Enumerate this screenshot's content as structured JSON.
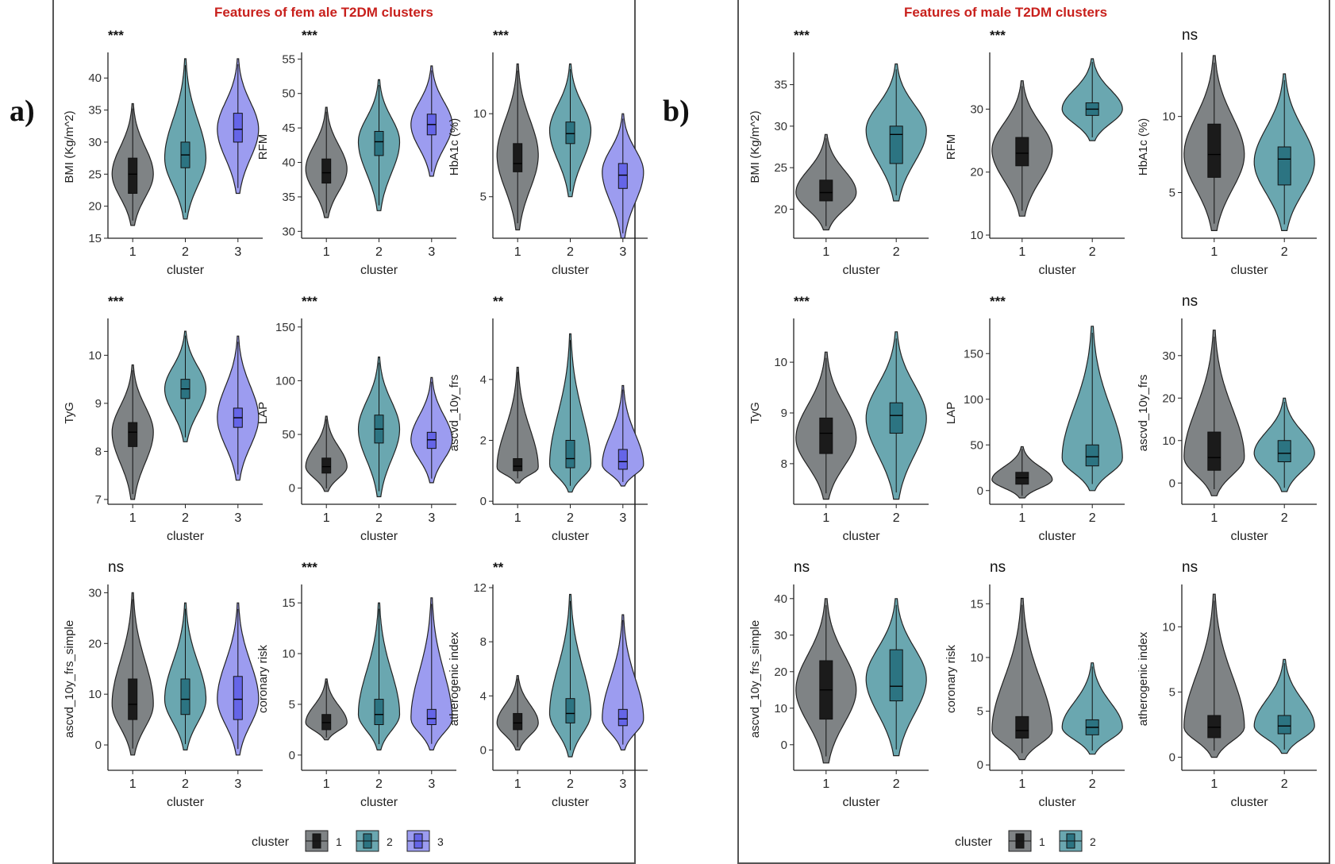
{
  "figure": {
    "left_label": "a)",
    "right_label": "b)",
    "left_title": "Features of fem ale T2DM  clusters",
    "right_title": "Features of male T2DM  clusters"
  },
  "colors": {
    "c1": "#7f8385",
    "c2": "#6aa7b0",
    "c3": "#9c9cf0",
    "box1": "#1b1b1b",
    "box2": "#2c7482",
    "box3": "#6565e8",
    "title": "#c8201c"
  },
  "legends": {
    "female": {
      "title": "cluster",
      "items": [
        "1",
        "2",
        "3"
      ]
    },
    "male": {
      "title": "cluster",
      "items": [
        "1",
        "2"
      ]
    }
  },
  "chart_data": [
    {
      "type": "violin",
      "group": "female",
      "ylabel": "BMI (Kg/m^2)",
      "xlabel": "cluster",
      "sig": "***",
      "categories": [
        "1",
        "2",
        "3"
      ],
      "ticks": [
        15,
        20,
        25,
        30,
        35,
        40
      ],
      "ylim": [
        15,
        43.5
      ],
      "violins": [
        {
          "lo": 17,
          "hi": 36,
          "mode": 25,
          "q1": 22,
          "med": 25,
          "q3": 27.5
        },
        {
          "lo": 18,
          "hi": 43,
          "mode": 27.5,
          "q1": 26,
          "med": 28,
          "q3": 30
        },
        {
          "lo": 22,
          "hi": 43,
          "mode": 32,
          "q1": 30,
          "med": 32,
          "q3": 34.5
        }
      ]
    },
    {
      "type": "violin",
      "group": "female",
      "ylabel": "RFM",
      "xlabel": "cluster",
      "sig": "***",
      "categories": [
        "1",
        "2",
        "3"
      ],
      "ticks": [
        30,
        35,
        40,
        45,
        50,
        55
      ],
      "ylim": [
        29,
        55.5
      ],
      "violins": [
        {
          "lo": 32,
          "hi": 48,
          "mode": 39,
          "q1": 37,
          "med": 38.5,
          "q3": 40.5
        },
        {
          "lo": 33,
          "hi": 52,
          "mode": 43,
          "q1": 41,
          "med": 43,
          "q3": 44.5
        },
        {
          "lo": 38,
          "hi": 54,
          "mode": 45.5,
          "q1": 44,
          "med": 45.5,
          "q3": 47
        }
      ]
    },
    {
      "type": "violin",
      "group": "female",
      "ylabel": "HbA1c (%)",
      "xlabel": "cluster",
      "sig": "***",
      "categories": [
        "1",
        "2",
        "3"
      ],
      "ticks": [
        5,
        10
      ],
      "ylim": [
        2.5,
        13.5
      ],
      "violins": [
        {
          "lo": 3,
          "hi": 13,
          "mode": 7.5,
          "q1": 6.5,
          "med": 7,
          "q3": 8.2
        },
        {
          "lo": 5,
          "hi": 13,
          "mode": 9,
          "q1": 8.2,
          "med": 8.8,
          "q3": 9.5
        },
        {
          "lo": 2.5,
          "hi": 10,
          "mode": 6.5,
          "q1": 5.5,
          "med": 6.3,
          "q3": 7
        }
      ]
    },
    {
      "type": "violin",
      "group": "female",
      "ylabel": "TyG",
      "xlabel": "cluster",
      "sig": "***",
      "categories": [
        "1",
        "2",
        "3"
      ],
      "ticks": [
        7,
        8,
        9,
        10
      ],
      "ylim": [
        6.9,
        10.7
      ],
      "violins": [
        {
          "lo": 7,
          "hi": 9.8,
          "mode": 8.4,
          "q1": 8.1,
          "med": 8.4,
          "q3": 8.6
        },
        {
          "lo": 8.2,
          "hi": 10.5,
          "mode": 9.3,
          "q1": 9.1,
          "med": 9.3,
          "q3": 9.5
        },
        {
          "lo": 7.4,
          "hi": 10.4,
          "mode": 8.7,
          "q1": 8.5,
          "med": 8.7,
          "q3": 8.9
        }
      ]
    },
    {
      "type": "violin",
      "group": "female",
      "ylabel": "LAP",
      "xlabel": "cluster",
      "sig": "***",
      "categories": [
        "1",
        "2",
        "3"
      ],
      "ticks": [
        0,
        50,
        100,
        150
      ],
      "ylim": [
        -15,
        155
      ],
      "violins": [
        {
          "lo": -3,
          "hi": 67,
          "mode": 20,
          "q1": 14,
          "med": 20,
          "q3": 28
        },
        {
          "lo": -8,
          "hi": 122,
          "mode": 55,
          "q1": 42,
          "med": 55,
          "q3": 68
        },
        {
          "lo": 5,
          "hi": 103,
          "mode": 45,
          "q1": 37,
          "med": 45,
          "q3": 52
        }
      ]
    },
    {
      "type": "violin",
      "group": "female",
      "ylabel": "ascvd_10y_frs",
      "xlabel": "cluster",
      "sig": "**",
      "categories": [
        "1",
        "2",
        "3"
      ],
      "ticks": [
        0,
        2,
        4
      ],
      "ylim": [
        -0.1,
        5.9
      ],
      "violins": [
        {
          "lo": 0.6,
          "hi": 4.4,
          "mode": 1.1,
          "q1": 1,
          "med": 1.15,
          "q3": 1.4
        },
        {
          "lo": 0.3,
          "hi": 5.5,
          "mode": 1.2,
          "q1": 1.1,
          "med": 1.4,
          "q3": 2
        },
        {
          "lo": 0.5,
          "hi": 3.8,
          "mode": 1.2,
          "q1": 1.05,
          "med": 1.3,
          "q3": 1.7
        }
      ]
    },
    {
      "type": "violin",
      "group": "female",
      "ylabel": "ascvd_10y_frs_simple",
      "xlabel": "cluster",
      "sig": "ns",
      "categories": [
        "1",
        "2",
        "3"
      ],
      "ticks": [
        0,
        10,
        20,
        30
      ],
      "ylim": [
        -5,
        31
      ],
      "violins": [
        {
          "lo": -2,
          "hi": 30,
          "mode": 8,
          "q1": 5,
          "med": 8,
          "q3": 13
        },
        {
          "lo": -1,
          "hi": 28,
          "mode": 9,
          "q1": 6,
          "med": 9,
          "q3": 13
        },
        {
          "lo": -2,
          "hi": 28,
          "mode": 9,
          "q1": 5,
          "med": 9,
          "q3": 13.5
        }
      ]
    },
    {
      "type": "violin",
      "group": "female",
      "ylabel": "coronary risk",
      "xlabel": "cluster",
      "sig": "***",
      "categories": [
        "1",
        "2",
        "3"
      ],
      "ticks": [
        0,
        5,
        10,
        15
      ],
      "ylim": [
        -1.5,
        16.5
      ],
      "violins": [
        {
          "lo": 1.5,
          "hi": 7.5,
          "mode": 3.2,
          "q1": 2.5,
          "med": 3.2,
          "q3": 4
        },
        {
          "lo": 0.5,
          "hi": 15,
          "mode": 4,
          "q1": 3,
          "med": 4,
          "q3": 5.5
        },
        {
          "lo": 0.5,
          "hi": 15.5,
          "mode": 3.6,
          "q1": 3,
          "med": 3.6,
          "q3": 4.5
        }
      ]
    },
    {
      "type": "violin",
      "group": "female",
      "ylabel": "atherogenic index",
      "xlabel": "cluster",
      "sig": "**",
      "categories": [
        "1",
        "2",
        "3"
      ],
      "ticks": [
        0,
        4,
        8,
        12
      ],
      "ylim": [
        -1.5,
        12
      ],
      "violins": [
        {
          "lo": 0,
          "hi": 5.5,
          "mode": 2,
          "q1": 1.5,
          "med": 2,
          "q3": 2.7
        },
        {
          "lo": -0.5,
          "hi": 11.5,
          "mode": 2.7,
          "q1": 2,
          "med": 2.7,
          "q3": 3.8
        },
        {
          "lo": 0,
          "hi": 10,
          "mode": 2.3,
          "q1": 1.8,
          "med": 2.3,
          "q3": 3
        }
      ]
    },
    {
      "type": "violin",
      "group": "male",
      "ylabel": "BMI (Kg/m^2)",
      "xlabel": "cluster",
      "sig": "***",
      "categories": [
        "1",
        "2"
      ],
      "ticks": [
        20,
        25,
        30,
        35
      ],
      "ylim": [
        16.5,
        38.5
      ],
      "violins": [
        {
          "lo": 17.5,
          "hi": 29,
          "mode": 22,
          "q1": 21,
          "med": 22,
          "q3": 23.5
        },
        {
          "lo": 21,
          "hi": 37.5,
          "mode": 29.5,
          "q1": 25.5,
          "med": 29,
          "q3": 30
        }
      ]
    },
    {
      "type": "violin",
      "group": "male",
      "ylabel": "RFM",
      "xlabel": "cluster",
      "sig": "***",
      "categories": [
        "1",
        "2"
      ],
      "ticks": [
        10,
        20,
        30
      ],
      "ylim": [
        9.5,
        38.5
      ],
      "violins": [
        {
          "lo": 13,
          "hi": 34.5,
          "mode": 23.5,
          "q1": 21,
          "med": 23,
          "q3": 25.5
        },
        {
          "lo": 25,
          "hi": 38,
          "mode": 30,
          "q1": 29,
          "med": 30,
          "q3": 31
        }
      ]
    },
    {
      "type": "violin",
      "group": "male",
      "ylabel": "HbA1c (%)",
      "xlabel": "cluster",
      "sig": "ns",
      "categories": [
        "1",
        "2"
      ],
      "ticks": [
        5,
        10
      ],
      "ylim": [
        2,
        14
      ],
      "violins": [
        {
          "lo": 2.5,
          "hi": 14,
          "mode": 7.5,
          "q1": 6,
          "med": 7.5,
          "q3": 9.5
        },
        {
          "lo": 2.5,
          "hi": 12.8,
          "mode": 7,
          "q1": 5.5,
          "med": 7.2,
          "q3": 8
        }
      ]
    },
    {
      "type": "violin",
      "group": "male",
      "ylabel": "TyG",
      "xlabel": "cluster",
      "sig": "***",
      "categories": [
        "1",
        "2"
      ],
      "ticks": [
        8,
        9,
        10
      ],
      "ylim": [
        7.2,
        10.8
      ],
      "violins": [
        {
          "lo": 7.3,
          "hi": 10.2,
          "mode": 8.5,
          "q1": 8.2,
          "med": 8.6,
          "q3": 8.9
        },
        {
          "lo": 7.3,
          "hi": 10.6,
          "mode": 8.9,
          "q1": 8.6,
          "med": 8.95,
          "q3": 9.2
        }
      ]
    },
    {
      "type": "violin",
      "group": "male",
      "ylabel": "LAP",
      "xlabel": "cluster",
      "sig": "***",
      "categories": [
        "1",
        "2"
      ],
      "ticks": [
        0,
        50,
        100,
        150
      ],
      "ylim": [
        -15,
        185
      ],
      "violins": [
        {
          "lo": -8,
          "hi": 48,
          "mode": 12,
          "q1": 7,
          "med": 14,
          "q3": 20
        },
        {
          "lo": 0,
          "hi": 180,
          "mode": 35,
          "q1": 27,
          "med": 37,
          "q3": 50
        }
      ]
    },
    {
      "type": "violin",
      "group": "male",
      "ylabel": "ascvd_10y_frs",
      "xlabel": "cluster",
      "sig": "ns",
      "categories": [
        "1",
        "2"
      ],
      "ticks": [
        0,
        10,
        20,
        30
      ],
      "ylim": [
        -5,
        38
      ],
      "violins": [
        {
          "lo": -3,
          "hi": 36,
          "mode": 6,
          "q1": 3,
          "med": 6,
          "q3": 12
        },
        {
          "lo": -2,
          "hi": 20,
          "mode": 7,
          "q1": 5,
          "med": 7,
          "q3": 10
        }
      ]
    },
    {
      "type": "violin",
      "group": "male",
      "ylabel": "ascvd_10y_frs_simple",
      "xlabel": "cluster",
      "sig": "ns",
      "categories": [
        "1",
        "2"
      ],
      "ticks": [
        0,
        10,
        20,
        30,
        40
      ],
      "ylim": [
        -7,
        43
      ],
      "violins": [
        {
          "lo": -5,
          "hi": 40,
          "mode": 15,
          "q1": 7,
          "med": 15,
          "q3": 23
        },
        {
          "lo": -3,
          "hi": 40,
          "mode": 18,
          "q1": 12,
          "med": 16,
          "q3": 26
        }
      ]
    },
    {
      "type": "violin",
      "group": "male",
      "ylabel": "coronary risk",
      "xlabel": "cluster",
      "sig": "ns",
      "categories": [
        "1",
        "2"
      ],
      "ticks": [
        0,
        5,
        10,
        15
      ],
      "ylim": [
        -0.5,
        16.5
      ],
      "violins": [
        {
          "lo": 0.5,
          "hi": 15.5,
          "mode": 3.2,
          "q1": 2.5,
          "med": 3.2,
          "q3": 4.5
        },
        {
          "lo": 1,
          "hi": 9.5,
          "mode": 3.5,
          "q1": 2.8,
          "med": 3.5,
          "q3": 4.2
        }
      ]
    },
    {
      "type": "violin",
      "group": "male",
      "ylabel": "atherogenic index",
      "xlabel": "cluster",
      "sig": "ns",
      "categories": [
        "1",
        "2"
      ],
      "ticks": [
        0,
        5,
        10
      ],
      "ylim": [
        -1,
        13
      ],
      "violins": [
        {
          "lo": 0,
          "hi": 12.5,
          "mode": 2.3,
          "q1": 1.5,
          "med": 2.3,
          "q3": 3.2
        },
        {
          "lo": 0.3,
          "hi": 7.5,
          "mode": 2.4,
          "q1": 1.8,
          "med": 2.4,
          "q3": 3.2
        }
      ]
    }
  ]
}
